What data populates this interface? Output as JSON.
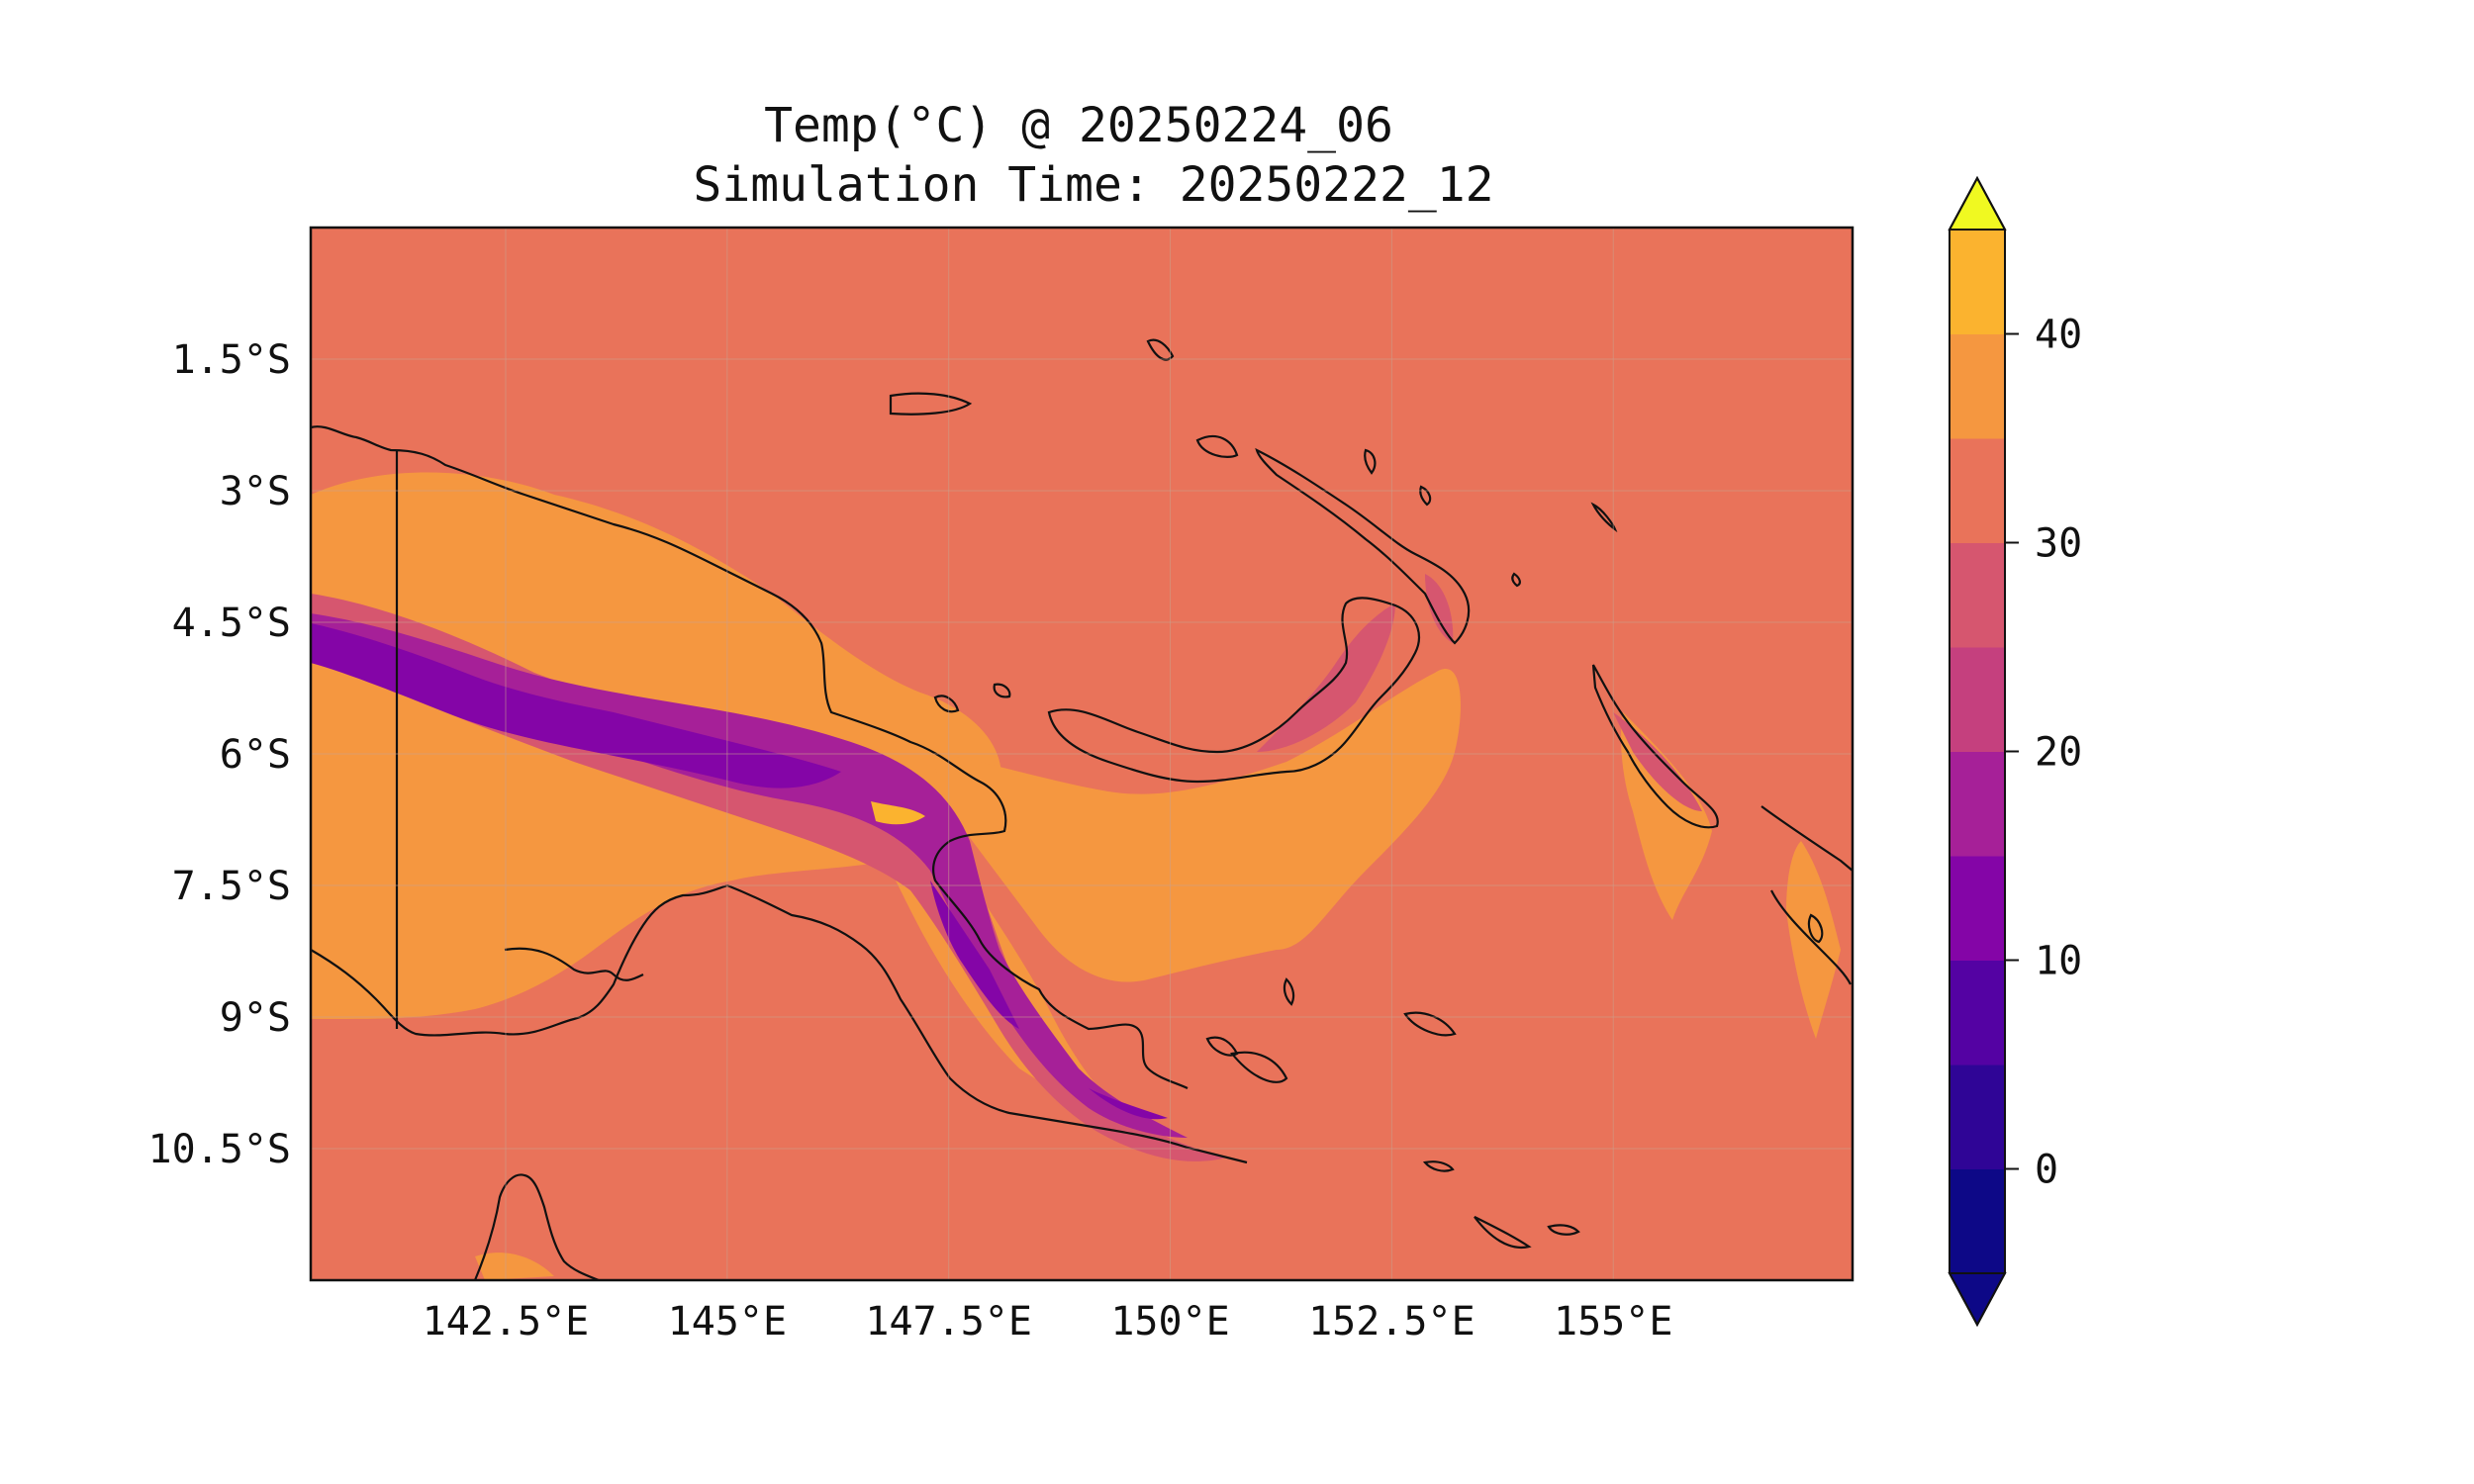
{
  "title": {
    "line1": "Temp(°C) @ 20250224_06",
    "line2": "Simulation Time: 20250222_12"
  },
  "chart_data": {
    "type": "heatmap",
    "variable": "Temp(°C)",
    "valid_time": "20250224_06",
    "simulation_time": "20250222_12",
    "region_extent_deg": {
      "lon": [
        140.3,
        157.7
      ],
      "lat": [
        -12.0,
        0.0
      ]
    },
    "x_ticks": [
      {
        "lon": 142.5,
        "label": "142.5°E"
      },
      {
        "lon": 145.0,
        "label": "145°E"
      },
      {
        "lon": 147.5,
        "label": "147.5°E"
      },
      {
        "lon": 150.0,
        "label": "150°E"
      },
      {
        "lon": 152.5,
        "label": "152.5°E"
      },
      {
        "lon": 155.0,
        "label": "155°E"
      }
    ],
    "y_ticks": [
      {
        "lat": -1.5,
        "label": "1.5°S"
      },
      {
        "lat": -3.0,
        "label": "3°S"
      },
      {
        "lat": -4.5,
        "label": "4.5°S"
      },
      {
        "lat": -6.0,
        "label": "6°S"
      },
      {
        "lat": -7.5,
        "label": "7.5°S"
      },
      {
        "lat": -9.0,
        "label": "9°S"
      },
      {
        "lat": -10.5,
        "label": "10.5°S"
      }
    ],
    "grid": true,
    "colorbar": {
      "placement": "right",
      "extend": "both",
      "levels": [
        -5,
        0,
        5,
        10,
        15,
        20,
        25,
        30,
        35,
        40,
        45
      ],
      "colors": [
        "#0d0887",
        "#2f0596",
        "#5402a3",
        "#8405a7",
        "#a62098",
        "#c5407e",
        "#d6566f",
        "#e9735a",
        "#f59740",
        "#fbb32f",
        "#f1e52a"
      ],
      "under_color": "#0d0887",
      "over_color": "#f0f921",
      "ticks": [
        0,
        10,
        20,
        30,
        40
      ],
      "tick_labels": [
        "0",
        "10",
        "20",
        "30",
        "40"
      ]
    },
    "dominant_field_value_range": [
      25,
      30
    ],
    "features": [
      "coastlines",
      "national border at 141°E"
    ]
  }
}
